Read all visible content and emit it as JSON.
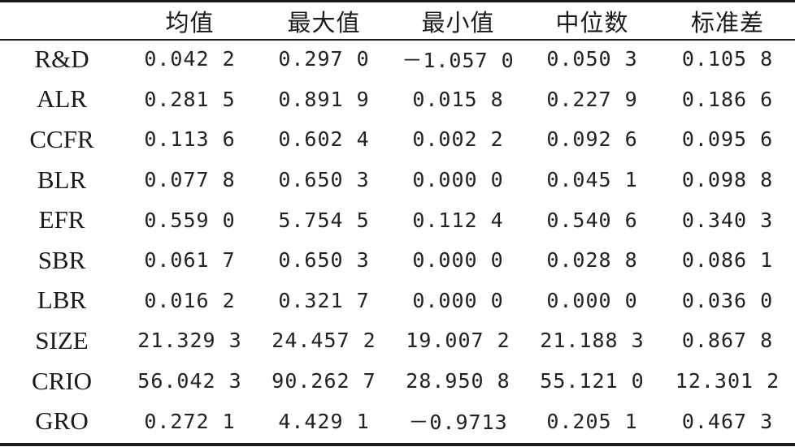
{
  "table": {
    "headers": [
      "",
      "均值",
      "最大值",
      "最小值",
      "中位数",
      "标准差"
    ],
    "rows": [
      {
        "var": "R&D",
        "values": [
          "0.042 2",
          "0.297 0",
          "－1.057 0",
          "0.050 3",
          "0.105 8"
        ]
      },
      {
        "var": "ALR",
        "values": [
          "0.281 5",
          "0.891 9",
          "0.015 8",
          "0.227 9",
          "0.186 6"
        ]
      },
      {
        "var": "CCFR",
        "values": [
          "0.113 6",
          "0.602 4",
          "0.002 2",
          "0.092 6",
          "0.095 6"
        ]
      },
      {
        "var": "BLR",
        "values": [
          "0.077 8",
          "0.650 3",
          "0.000 0",
          "0.045 1",
          "0.098 8"
        ]
      },
      {
        "var": "EFR",
        "values": [
          "0.559 0",
          "5.754 5",
          "0.112 4",
          "0.540 6",
          "0.340 3"
        ]
      },
      {
        "var": "SBR",
        "values": [
          "0.061 7",
          "0.650 3",
          "0.000 0",
          "0.028 8",
          "0.086 1"
        ]
      },
      {
        "var": "LBR",
        "values": [
          "0.016 2",
          "0.321 7",
          "0.000 0",
          "0.000 0",
          "0.036 0"
        ]
      },
      {
        "var": "SIZE",
        "values": [
          "21.329 3",
          "24.457 2",
          "19.007 2",
          "21.188 3",
          "0.867 8"
        ]
      },
      {
        "var": "CRIO",
        "values": [
          "56.042 3",
          "90.262 7",
          "28.950 8",
          "55.121 0",
          "12.301 2"
        ]
      },
      {
        "var": "GRO",
        "values": [
          "0.272 1",
          "4.429 1",
          "－0.9713",
          "0.205 1",
          "0.467 3"
        ]
      }
    ]
  }
}
